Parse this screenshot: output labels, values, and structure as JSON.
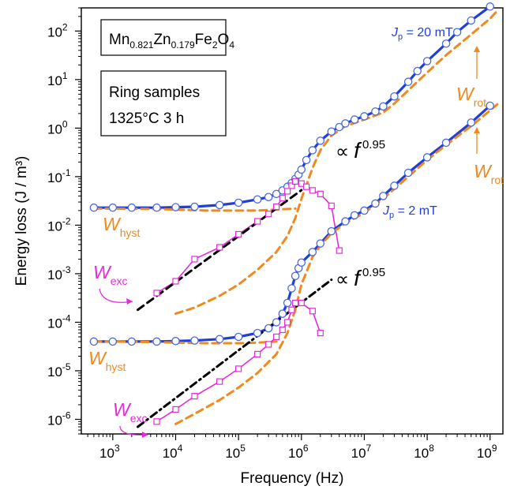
{
  "chart_data": {
    "type": "line",
    "xlabel": "Frequency (Hz)",
    "ylabel": "Energy loss (J / m³)",
    "xscale": "log",
    "yscale": "log",
    "xlim": [
      316,
      1600000000
    ],
    "ylim": [
      5e-07,
      300
    ],
    "xticks": [
      1000,
      10000,
      100000,
      1000000,
      10000000,
      100000000,
      1000000000
    ],
    "xtick_labels": [
      {
        "base": "10",
        "exp": "3"
      },
      {
        "base": "10",
        "exp": "4"
      },
      {
        "base": "10",
        "exp": "5"
      },
      {
        "base": "10",
        "exp": "6"
      },
      {
        "base": "10",
        "exp": "7"
      },
      {
        "base": "10",
        "exp": "8"
      },
      {
        "base": "10",
        "exp": "9"
      }
    ],
    "yticks": [
      1e-06,
      1e-05,
      0.0001,
      0.001,
      0.01,
      0.1,
      1,
      10,
      100
    ],
    "ytick_labels": [
      {
        "base": "10",
        "exp": "-6"
      },
      {
        "base": "10",
        "exp": "-5"
      },
      {
        "base": "10",
        "exp": "-4"
      },
      {
        "base": "10",
        "exp": "-3"
      },
      {
        "base": "10",
        "exp": "-2"
      },
      {
        "base": "10",
        "exp": "-1"
      },
      {
        "base": "10",
        "exp": "0"
      },
      {
        "base": "10",
        "exp": "1"
      },
      {
        "base": "10",
        "exp": "2"
      }
    ],
    "grid": false,
    "colors": {
      "total_line": "#1f3fd8",
      "total_markers": "#4a68e0",
      "hyst_rot": "#f08a1e",
      "exc": "#e52bd9",
      "fit": "#000000"
    },
    "series": [
      {
        "group": "Jp = 20 mT",
        "style": "blue line with open circles",
        "x": [
          500,
          1000,
          2000,
          5000,
          10000,
          20000,
          50000,
          100000,
          200000,
          300000,
          400000,
          500000,
          600000,
          700000,
          800000,
          900000,
          1000000,
          1200000,
          1500000,
          2000000,
          3000000,
          4000000,
          5000000,
          7000000,
          10000000,
          15000000,
          20000000,
          30000000,
          50000000,
          70000000,
          100000000,
          200000000,
          300000000,
          500000000,
          1000000000
        ],
        "y": [
          0.023,
          0.023,
          0.023,
          0.023,
          0.0235,
          0.024,
          0.026,
          0.029,
          0.034,
          0.038,
          0.044,
          0.052,
          0.062,
          0.074,
          0.09,
          0.11,
          0.14,
          0.22,
          0.35,
          0.55,
          0.85,
          1.05,
          1.25,
          1.5,
          1.75,
          2.2,
          2.8,
          4.5,
          9,
          15,
          24,
          55,
          95,
          165,
          320
        ]
      },
      {
        "group": "Jp = 20 mT",
        "name": "W_hyst",
        "style": "orange dashed",
        "x": [
          500,
          1000,
          5000,
          10000,
          30000,
          100000,
          200000,
          400000,
          800000
        ],
        "y": [
          0.022,
          0.022,
          0.0215,
          0.021,
          0.02,
          0.02,
          0.02,
          0.021,
          0.022
        ]
      },
      {
        "group": "Jp = 20 mT",
        "name": "W_rot",
        "style": "orange dashed",
        "x": [
          10000,
          20000,
          50000,
          100000,
          200000,
          400000,
          600000,
          800000,
          1000000,
          1500000,
          2000000,
          3000000,
          5000000,
          10000000,
          20000000,
          30000000,
          50000000,
          100000000,
          200000000,
          500000000,
          1000000000,
          1300000000
        ],
        "y": [
          0.00015,
          0.0002,
          0.00035,
          0.0006,
          0.0012,
          0.0028,
          0.006,
          0.014,
          0.035,
          0.15,
          0.35,
          0.7,
          1.1,
          1.5,
          2.1,
          3.2,
          6,
          14,
          32,
          85,
          180,
          260
        ]
      },
      {
        "group": "Jp = 20 mT",
        "name": "W_exc",
        "style": "magenta line with open squares",
        "x": [
          5000,
          10000,
          20000,
          50000,
          100000,
          200000,
          300000,
          400000,
          500000,
          600000,
          700000,
          800000,
          1000000,
          1200000,
          1500000,
          2000000,
          3000000,
          4000000
        ],
        "y": [
          0.0004,
          0.0007,
          0.002,
          0.0035,
          0.0065,
          0.012,
          0.017,
          0.024,
          0.036,
          0.05,
          0.065,
          0.08,
          0.072,
          0.062,
          0.052,
          0.044,
          0.025,
          0.003
        ]
      },
      {
        "group": "Jp = 20 mT",
        "name": "∝ f^0.95",
        "style": "black dashed",
        "x": [
          2500,
          1000000
        ],
        "y": [
          0.00018,
          0.0528
        ]
      },
      {
        "group": "Jp = 2 mT",
        "style": "blue line with open circles",
        "x": [
          500,
          1000,
          2000,
          5000,
          10000,
          20000,
          50000,
          100000,
          200000,
          300000,
          400000,
          500000,
          600000,
          700000,
          800000,
          900000,
          1000000,
          1500000,
          2000000,
          3000000,
          5000000,
          7000000,
          10000000,
          15000000,
          20000000,
          30000000,
          50000000,
          100000000,
          200000000,
          500000000,
          1000000000
        ],
        "y": [
          4e-05,
          4e-05,
          4e-05,
          4e-05,
          4.1e-05,
          4.2e-05,
          4.5e-05,
          5e-05,
          6e-05,
          7.5e-05,
          0.0001,
          0.00015,
          0.00025,
          0.0005,
          0.0009,
          0.0013,
          0.0017,
          0.0028,
          0.0042,
          0.0075,
          0.012,
          0.016,
          0.02,
          0.028,
          0.04,
          0.065,
          0.12,
          0.25,
          0.5,
          1.3,
          2.9
        ]
      },
      {
        "group": "Jp = 2 mT",
        "name": "W_hyst",
        "style": "orange dashed",
        "x": [
          500,
          1000,
          5000,
          10000,
          30000,
          100000,
          200000,
          400000
        ],
        "y": [
          4e-05,
          4e-05,
          3.9e-05,
          3.8e-05,
          3.7e-05,
          3.7e-05,
          3.8e-05,
          4e-05
        ]
      },
      {
        "group": "Jp = 2 mT",
        "name": "W_rot",
        "style": "orange dashed",
        "x": [
          10000,
          20000,
          50000,
          100000,
          200000,
          400000,
          600000,
          800000,
          1000000,
          1500000,
          2000000,
          3000000,
          5000000,
          10000000,
          20000000,
          50000000,
          100000000,
          200000000,
          500000000,
          1000000000,
          1300000000
        ],
        "y": [
          8e-07,
          1.3e-06,
          2.5e-06,
          4.5e-06,
          9e-06,
          2.2e-05,
          6e-05,
          0.00018,
          0.0006,
          0.0022,
          0.0038,
          0.0068,
          0.011,
          0.018,
          0.035,
          0.1,
          0.22,
          0.45,
          1.1,
          2.3,
          3.1
        ]
      },
      {
        "group": "Jp = 2 mT",
        "name": "W_exc",
        "style": "magenta line with open squares",
        "x": [
          5000,
          10000,
          20000,
          50000,
          100000,
          200000,
          300000,
          400000,
          500000,
          600000,
          700000,
          800000,
          1000000,
          1500000,
          2000000
        ],
        "y": [
          9e-07,
          1.6e-06,
          3e-06,
          6e-06,
          1.1e-05,
          2.2e-05,
          3.5e-05,
          5e-05,
          7e-05,
          0.0001,
          0.00018,
          0.00025,
          0.00025,
          0.00017,
          6e-05
        ]
      },
      {
        "group": "Jp = 2 mT",
        "name": "∝ f^0.95",
        "style": "black dash-dot",
        "x": [
          2500,
          3000000
        ],
        "y": [
          7e-07,
          0.00075
        ]
      }
    ],
    "annotations": {
      "formula": {
        "a": "Mn",
        "a_sub": "0.821",
        "b": "Zn",
        "b_sub": "0.179",
        "c": "Fe",
        "c_sub": "2",
        "d": "O",
        "d_sub": "4"
      },
      "samples_line1": "Ring samples",
      "samples_line2": "1325°C 3 h",
      "jp_high": {
        "sym": "J",
        "sub": "p",
        "val": " = 20 mT"
      },
      "jp_low": {
        "sym": "J",
        "sub": "p",
        "val": " = 2 mT"
      },
      "propto": "∝",
      "fsym": "f",
      "exponent": "0.95",
      "w": "W",
      "hyst": "hyst",
      "exc": "exc",
      "rot": "rot"
    }
  }
}
